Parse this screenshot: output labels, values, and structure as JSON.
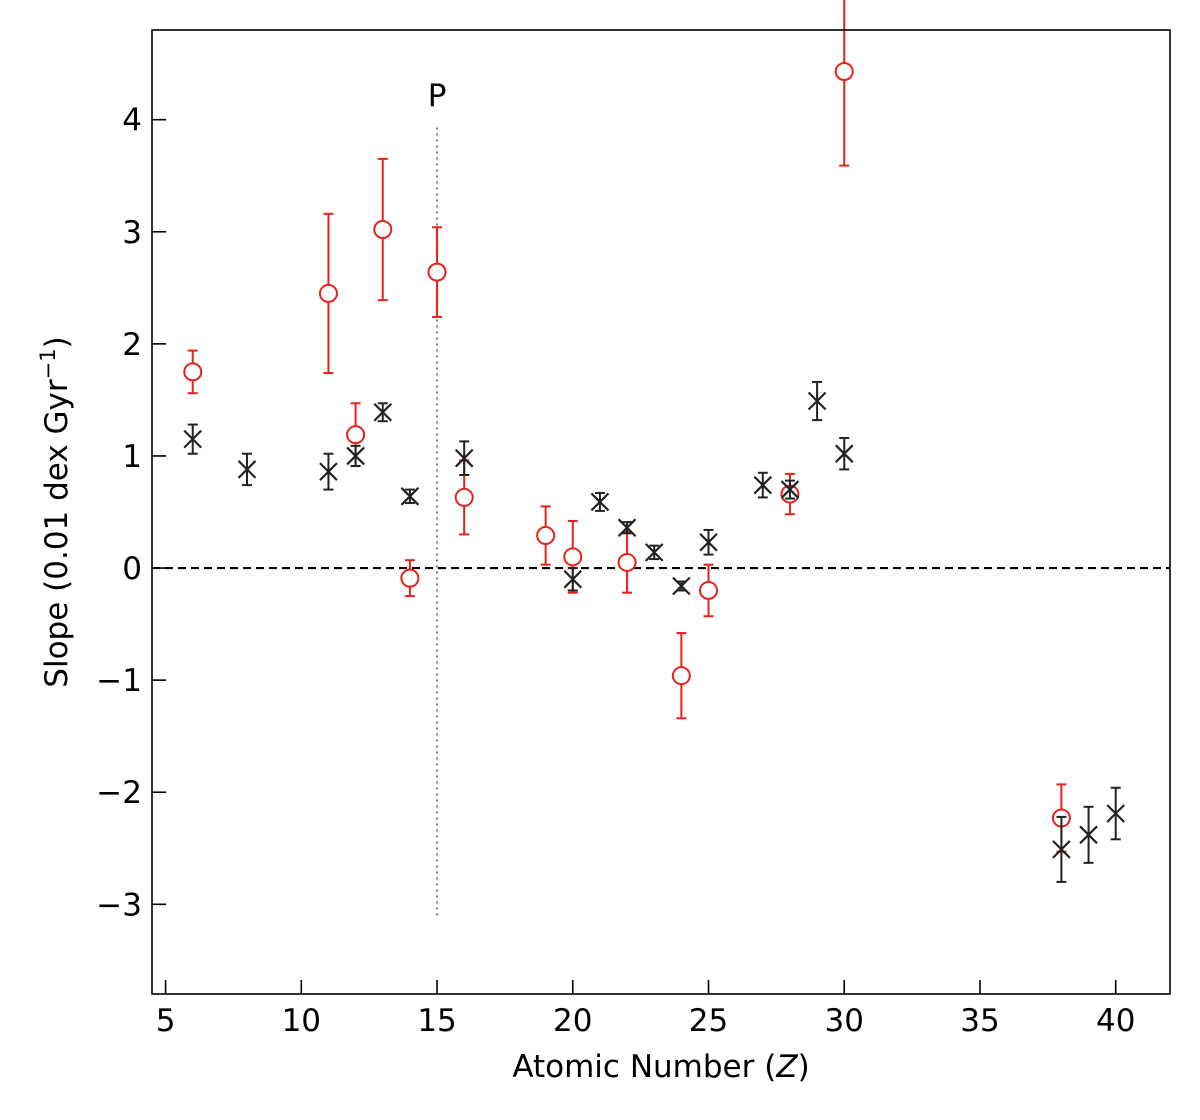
{
  "chart_data": {
    "type": "scatter",
    "title": "",
    "xlabel": "Atomic Number (",
    "xlabel_italic": "Z",
    "xlabel_suffix": ")",
    "ylabel": "Slope (0.01 dex Gyr",
    "ylabel_sup": "−1",
    "ylabel_suffix": ")",
    "xlim": [
      4.5,
      42
    ],
    "ylim": [
      -3.8,
      4.8
    ],
    "xticks": [
      5,
      10,
      15,
      20,
      25,
      30,
      35,
      40
    ],
    "xtick_labels": [
      "5",
      "10",
      "15",
      "20",
      "25",
      "30",
      "35",
      "40"
    ],
    "yticks": [
      -3,
      -2,
      -1,
      0,
      1,
      2,
      3,
      4
    ],
    "ytick_labels": [
      "−3",
      "−2",
      "−1",
      "0",
      "1",
      "2",
      "3",
      "4"
    ],
    "reference_lines": {
      "horizontal_y": 0,
      "vertical_x": 15,
      "vertical_y_range": [
        -3.1,
        3.93
      ],
      "vertical_label": "P",
      "vertical_label_y": 4.22
    },
    "series": [
      {
        "name": "circles",
        "marker": "circle",
        "color": "#e8221b",
        "points": [
          {
            "x": 6,
            "y": 1.75,
            "err": 0.19
          },
          {
            "x": 11,
            "y": 2.45,
            "err": 0.71
          },
          {
            "x": 12,
            "y": 1.19,
            "err": 0.28
          },
          {
            "x": 13,
            "y": 3.02,
            "err": 0.63
          },
          {
            "x": 14,
            "y": -0.09,
            "err": 0.16
          },
          {
            "x": 15,
            "y": 2.64,
            "err": 0.4
          },
          {
            "x": 16,
            "y": 0.63,
            "err": 0.33
          },
          {
            "x": 19,
            "y": 0.29,
            "err": 0.26
          },
          {
            "x": 20,
            "y": 0.1,
            "err": 0.32
          },
          {
            "x": 22,
            "y": 0.05,
            "err": 0.27
          },
          {
            "x": 24,
            "y": -0.96,
            "err": 0.38
          },
          {
            "x": 25,
            "y": -0.2,
            "err": 0.23
          },
          {
            "x": 28,
            "y": 0.66,
            "err": 0.18
          },
          {
            "x": 30,
            "y": 4.43,
            "err": 0.84
          },
          {
            "x": 38,
            "y": -2.23,
            "err": 0.3
          }
        ]
      },
      {
        "name": "crosses",
        "marker": "x",
        "color": "#222222",
        "points": [
          {
            "x": 6,
            "y": 1.15,
            "err": 0.13
          },
          {
            "x": 8,
            "y": 0.88,
            "err": 0.14
          },
          {
            "x": 11,
            "y": 0.86,
            "err": 0.16
          },
          {
            "x": 12,
            "y": 1.0,
            "err": 0.09
          },
          {
            "x": 13,
            "y": 1.39,
            "err": 0.08
          },
          {
            "x": 14,
            "y": 0.64,
            "err": 0.06
          },
          {
            "x": 16,
            "y": 0.98,
            "err": 0.15
          },
          {
            "x": 20,
            "y": -0.1,
            "err": 0.1
          },
          {
            "x": 21,
            "y": 0.59,
            "err": 0.08
          },
          {
            "x": 22,
            "y": 0.36,
            "err": 0.05
          },
          {
            "x": 23,
            "y": 0.14,
            "err": 0.06
          },
          {
            "x": 24,
            "y": -0.16,
            "err": 0.04
          },
          {
            "x": 25,
            "y": 0.23,
            "err": 0.11
          },
          {
            "x": 27,
            "y": 0.74,
            "err": 0.11
          },
          {
            "x": 28,
            "y": 0.7,
            "err": 0.08
          },
          {
            "x": 29,
            "y": 1.49,
            "err": 0.17
          },
          {
            "x": 30,
            "y": 1.02,
            "err": 0.14
          },
          {
            "x": 38,
            "y": -2.51,
            "err": 0.29
          },
          {
            "x": 39,
            "y": -2.38,
            "err": 0.25
          },
          {
            "x": 40,
            "y": -2.19,
            "err": 0.23
          }
        ]
      }
    ]
  }
}
